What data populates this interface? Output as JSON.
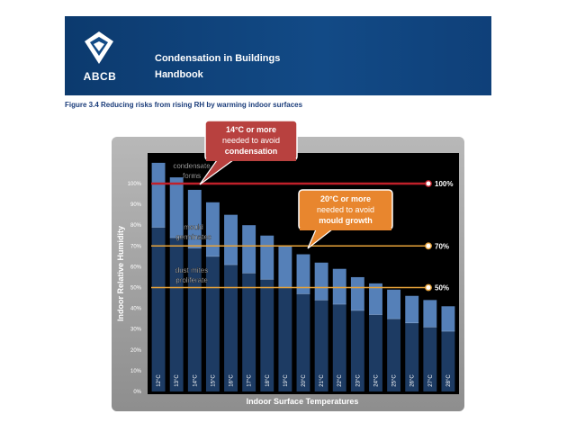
{
  "header": {
    "logo_text": "ABCB",
    "title": "Condensation in Buildings",
    "subtitle": "Handbook"
  },
  "figure_caption": "Figure 3.4 Reducing risks from rising RH by warming indoor surfaces",
  "colors": {
    "banner": "#0f4079",
    "frame_outer": "#a5a5a5",
    "plot_bg": "#000000",
    "bar_dark": "#1d3b63",
    "bar_light": "#5580b8",
    "line_100": "#c0202a",
    "line_70_50": "#e8a33a",
    "callout_red": "#b8413f",
    "callout_orange": "#e8862e"
  },
  "chart_data": {
    "type": "bar",
    "title": "",
    "xlabel": "Indoor Surface Temperatures",
    "ylabel": "Indoor Relative Humidity",
    "ylim": [
      0,
      110
    ],
    "yticks": [
      "0%",
      "10%",
      "20%",
      "30%",
      "40%",
      "50%",
      "60%",
      "70%",
      "80%",
      "90%",
      "100%"
    ],
    "categories": [
      "12°C",
      "13°C",
      "14°C",
      "15°C",
      "16°C",
      "17°C",
      "18°C",
      "19°C",
      "20°C",
      "21°C",
      "22°C",
      "23°C",
      "24°C",
      "25°C",
      "26°C",
      "27°C",
      "28°C"
    ],
    "series": [
      {
        "values": [
          79,
          74,
          69,
          65,
          61,
          57,
          54,
          50,
          47,
          44,
          42,
          39,
          37,
          35,
          33,
          31,
          29
        ]
      },
      {
        "values": [
          110,
          103,
          97,
          91,
          85,
          80,
          75,
          70,
          66,
          62,
          59,
          55,
          52,
          49,
          46,
          44,
          41
        ]
      }
    ],
    "reference_lines": [
      {
        "value": 100,
        "label": "100%",
        "color": "#c0202a"
      },
      {
        "value": 70,
        "label": "70%",
        "color": "#e8a33a"
      },
      {
        "value": 50,
        "label": "50%",
        "color": "#e8a33a"
      }
    ],
    "annotations": {
      "condensate_forms": [
        "condensate",
        "forms"
      ],
      "mould_germinates": [
        "mould",
        "germinates"
      ],
      "dust_mites": [
        "dust mites",
        "proliferate"
      ]
    },
    "callouts": [
      {
        "lines": [
          "14°C or more",
          "needed to avoid",
          "condensation"
        ],
        "color": "#b8413f"
      },
      {
        "lines": [
          "20°C or more",
          "needed to avoid",
          "mould growth"
        ],
        "color": "#e8862e"
      }
    ],
    "legend": "none",
    "grid": false
  }
}
